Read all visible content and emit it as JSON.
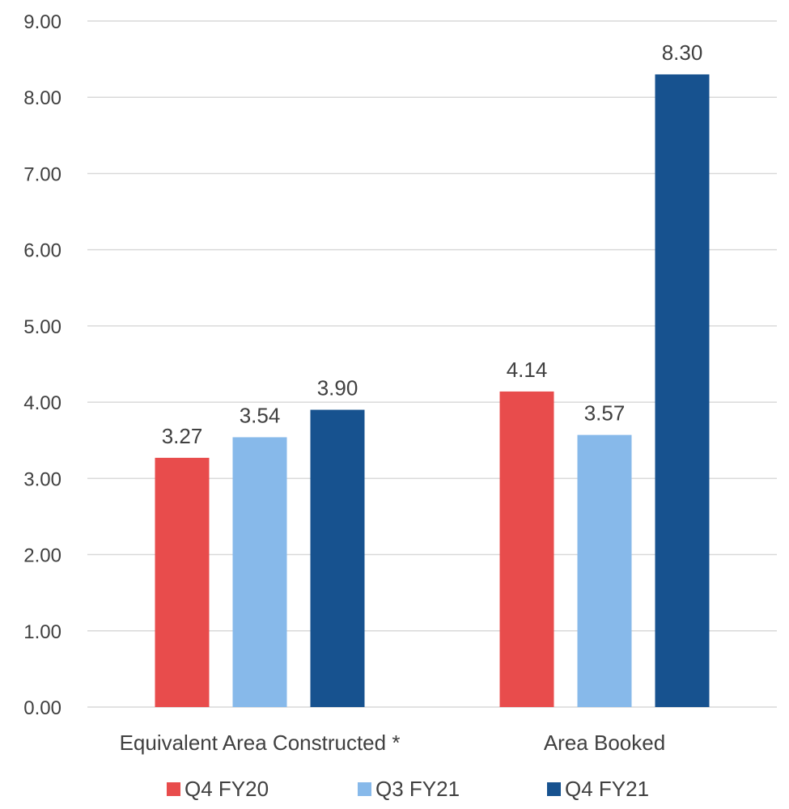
{
  "chart_data": {
    "type": "bar",
    "categories": [
      "Equivalent Area Constructed *",
      "Area Booked"
    ],
    "series": [
      {
        "name": "Q4 FY20",
        "values": [
          3.27,
          4.14
        ],
        "color": "#e84c4c"
      },
      {
        "name": "Q3 FY21",
        "values": [
          3.54,
          3.57
        ],
        "color": "#87b9ea"
      },
      {
        "name": "Q4 FY21",
        "values": [
          3.9,
          8.3
        ],
        "color": "#17528f"
      }
    ],
    "ylim": [
      0,
      9
    ],
    "yticks": [
      "0.00",
      "1.00",
      "2.00",
      "3.00",
      "4.00",
      "5.00",
      "6.00",
      "7.00",
      "8.00",
      "9.00"
    ],
    "data_labels": [
      [
        "3.27",
        "4.14"
      ],
      [
        "3.54",
        "3.57"
      ],
      [
        "3.90",
        "8.30"
      ]
    ],
    "grid": true,
    "gridline_color": "#d9d9d9",
    "legend_position": "bottom"
  }
}
